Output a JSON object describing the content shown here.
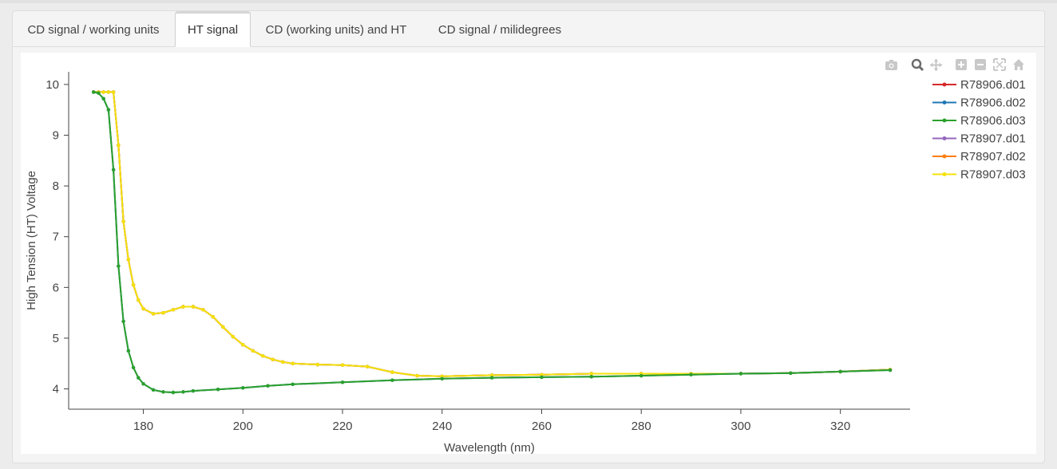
{
  "tabs": [
    {
      "label": "CD signal / working units",
      "active": false
    },
    {
      "label": "HT signal",
      "active": true
    },
    {
      "label": "CD (working units) and HT",
      "active": false
    },
    {
      "label": "CD signal / milidegrees",
      "active": false
    }
  ],
  "modebar": {
    "icons": [
      "camera-icon",
      "zoom-icon",
      "pan-icon",
      "zoom-in-icon",
      "zoom-out-icon",
      "autoscale-icon",
      "home-icon"
    ]
  },
  "chart_data": {
    "type": "line",
    "xlabel": "Wavelength (nm)",
    "ylabel": "High Tension (HT) Voltage",
    "xlim": [
      165,
      334
    ],
    "ylim": [
      3.6,
      10.25
    ],
    "xticks": [
      180,
      200,
      220,
      240,
      260,
      280,
      300,
      320
    ],
    "yticks": [
      4,
      5,
      6,
      7,
      8,
      9,
      10
    ],
    "grid": false,
    "legend_position": "top-right",
    "markers": true,
    "series": [
      {
        "name": "R78906.d01",
        "color": "#d62728",
        "group": "A",
        "x": [
          170,
          171,
          172,
          173,
          174,
          175,
          176,
          177,
          178,
          179,
          180,
          182,
          184,
          186,
          188,
          190,
          192,
          194,
          196,
          198,
          200,
          202,
          204,
          206,
          208,
          210,
          215,
          220,
          225,
          230,
          235,
          240,
          250,
          260,
          270,
          280,
          290,
          300,
          310,
          320,
          330
        ],
        "y": [
          9.85,
          9.85,
          9.85,
          9.85,
          9.85,
          8.8,
          7.3,
          6.55,
          6.05,
          5.75,
          5.58,
          5.48,
          5.5,
          5.56,
          5.62,
          5.62,
          5.56,
          5.42,
          5.22,
          5.03,
          4.87,
          4.75,
          4.65,
          4.58,
          4.53,
          4.5,
          4.48,
          4.47,
          4.44,
          4.33,
          4.26,
          4.25,
          4.27,
          4.28,
          4.3,
          4.3,
          4.3,
          4.3,
          4.31,
          4.34,
          4.38
        ]
      },
      {
        "name": "R78906.d02",
        "color": "#1f77b4",
        "group": "B",
        "x": [
          170,
          171,
          172,
          173,
          174,
          175,
          176,
          177,
          178,
          179,
          180,
          182,
          184,
          186,
          188,
          190,
          195,
          200,
          205,
          210,
          220,
          230,
          240,
          250,
          260,
          270,
          280,
          290,
          300,
          310,
          320,
          330
        ],
        "y": [
          9.85,
          9.83,
          9.72,
          9.5,
          8.32,
          6.42,
          5.33,
          4.75,
          4.42,
          4.22,
          4.1,
          3.98,
          3.94,
          3.93,
          3.94,
          3.96,
          3.99,
          4.02,
          4.06,
          4.09,
          4.13,
          4.17,
          4.2,
          4.22,
          4.23,
          4.24,
          4.26,
          4.28,
          4.3,
          4.31,
          4.34,
          4.37
        ]
      },
      {
        "name": "R78906.d03",
        "color": "#2ca02c",
        "group": "B",
        "x": [
          170,
          171,
          172,
          173,
          174,
          175,
          176,
          177,
          178,
          179,
          180,
          182,
          184,
          186,
          188,
          190,
          195,
          200,
          205,
          210,
          220,
          230,
          240,
          250,
          260,
          270,
          280,
          290,
          300,
          310,
          320,
          330
        ],
        "y": [
          9.85,
          9.83,
          9.72,
          9.5,
          8.32,
          6.42,
          5.33,
          4.75,
          4.42,
          4.22,
          4.1,
          3.98,
          3.94,
          3.93,
          3.94,
          3.96,
          3.99,
          4.02,
          4.06,
          4.09,
          4.13,
          4.17,
          4.2,
          4.22,
          4.23,
          4.24,
          4.26,
          4.28,
          4.3,
          4.31,
          4.34,
          4.37
        ]
      },
      {
        "name": "R78907.d01",
        "color": "#9467bd",
        "group": "A",
        "x": [
          170,
          171,
          172,
          173,
          174,
          175,
          176,
          177,
          178,
          179,
          180,
          182,
          184,
          186,
          188,
          190,
          192,
          194,
          196,
          198,
          200,
          202,
          204,
          206,
          208,
          210,
          215,
          220,
          225,
          230,
          235,
          240,
          250,
          260,
          270,
          280,
          290,
          300,
          310,
          320,
          330
        ],
        "y": [
          9.85,
          9.85,
          9.85,
          9.85,
          9.85,
          8.8,
          7.3,
          6.55,
          6.05,
          5.75,
          5.58,
          5.48,
          5.5,
          5.56,
          5.62,
          5.62,
          5.56,
          5.42,
          5.22,
          5.03,
          4.87,
          4.75,
          4.65,
          4.58,
          4.53,
          4.5,
          4.48,
          4.47,
          4.44,
          4.33,
          4.26,
          4.25,
          4.27,
          4.28,
          4.3,
          4.3,
          4.3,
          4.3,
          4.31,
          4.34,
          4.38
        ]
      },
      {
        "name": "R78907.d02",
        "color": "#ff7f0e",
        "group": "A",
        "x": [
          170,
          171,
          172,
          173,
          174,
          175,
          176,
          177,
          178,
          179,
          180,
          182,
          184,
          186,
          188,
          190,
          192,
          194,
          196,
          198,
          200,
          202,
          204,
          206,
          208,
          210,
          215,
          220,
          225,
          230,
          235,
          240,
          250,
          260,
          270,
          280,
          290,
          300,
          310,
          320,
          330
        ],
        "y": [
          9.85,
          9.85,
          9.85,
          9.85,
          9.85,
          8.8,
          7.3,
          6.55,
          6.05,
          5.75,
          5.58,
          5.48,
          5.5,
          5.56,
          5.62,
          5.62,
          5.56,
          5.42,
          5.22,
          5.03,
          4.87,
          4.75,
          4.65,
          4.58,
          4.53,
          4.5,
          4.48,
          4.47,
          4.44,
          4.33,
          4.26,
          4.25,
          4.27,
          4.28,
          4.3,
          4.3,
          4.3,
          4.3,
          4.31,
          4.34,
          4.38
        ]
      },
      {
        "name": "R78907.d03",
        "color": "#f5e20a",
        "group": "A",
        "x": [
          170,
          171,
          172,
          173,
          174,
          175,
          176,
          177,
          178,
          179,
          180,
          182,
          184,
          186,
          188,
          190,
          192,
          194,
          196,
          198,
          200,
          202,
          204,
          206,
          208,
          210,
          215,
          220,
          225,
          230,
          235,
          240,
          250,
          260,
          270,
          280,
          290,
          300,
          310,
          320,
          330
        ],
        "y": [
          9.85,
          9.85,
          9.85,
          9.85,
          9.85,
          8.8,
          7.3,
          6.55,
          6.05,
          5.75,
          5.58,
          5.48,
          5.5,
          5.56,
          5.62,
          5.62,
          5.56,
          5.42,
          5.22,
          5.03,
          4.87,
          4.75,
          4.65,
          4.58,
          4.53,
          4.5,
          4.48,
          4.47,
          4.44,
          4.33,
          4.26,
          4.25,
          4.27,
          4.28,
          4.3,
          4.3,
          4.3,
          4.3,
          4.31,
          4.34,
          4.38
        ]
      }
    ]
  }
}
